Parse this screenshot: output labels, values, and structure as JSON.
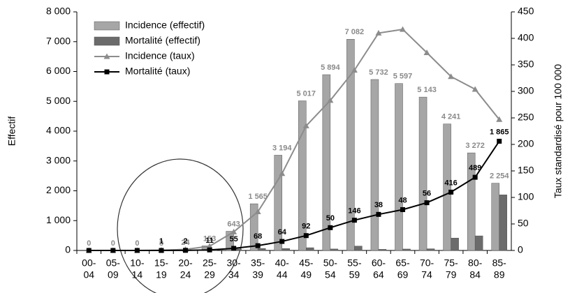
{
  "chart_data": {
    "type": "bar-line",
    "y_label": "Effectif",
    "y2_label": "Taux standardisé pour 100 000",
    "categories": [
      [
        "00-",
        "04"
      ],
      [
        "05-",
        "09"
      ],
      [
        "10-",
        "14"
      ],
      [
        "15-",
        "19"
      ],
      [
        "20-",
        "24"
      ],
      [
        "25-",
        "29"
      ],
      [
        "30-",
        "34"
      ],
      [
        "35-",
        "39"
      ],
      [
        "40-",
        "44"
      ],
      [
        "45-",
        "49"
      ],
      [
        "50-",
        "54"
      ],
      [
        "55-",
        "59"
      ],
      [
        "60-",
        "64"
      ],
      [
        "65-",
        "69"
      ],
      [
        "70-",
        "74"
      ],
      [
        "75-",
        "79"
      ],
      [
        "80-",
        "84"
      ],
      [
        "85-",
        "89"
      ]
    ],
    "series": [
      {
        "name": "Incidence (effectif)",
        "kind": "bar",
        "color": "#a6a6a6",
        "label_color": "#8a8a8a",
        "values": [
          0,
          0,
          0,
          3,
          24,
          153,
          643,
          1565,
          3194,
          5017,
          5894,
          7082,
          5732,
          5597,
          5143,
          4241,
          3272,
          2254
        ],
        "value_labels": [
          "0",
          "0",
          "0",
          "3",
          "24",
          "153",
          "643",
          "1 565",
          "3 194",
          "5 017",
          "5 894",
          "7 082",
          "5 732",
          "5 597",
          "5 143",
          "4 241",
          "3 272",
          "2 254"
        ]
      },
      {
        "name": "Mortalité (effectif)",
        "kind": "bar",
        "color": "#6b6b6b",
        "label_color": "#000000",
        "values": [
          0,
          0,
          0,
          1,
          2,
          11,
          55,
          68,
          64,
          92,
          50,
          146,
          38,
          48,
          56,
          416,
          489,
          1865
        ],
        "value_labels": [
          null,
          null,
          null,
          "1",
          "2",
          "11",
          "55",
          "68",
          "64",
          "92",
          "50",
          "146",
          "38",
          "48",
          "56",
          "416",
          "489",
          "1 865"
        ]
      },
      {
        "name": "Incidence (taux)",
        "kind": "line",
        "axis": "y2",
        "marker": "triangle",
        "color": "#8c8c8c",
        "values": [
          0,
          0,
          0,
          0.5,
          2,
          8,
          35,
          73,
          145,
          235,
          283,
          340,
          410,
          417,
          373,
          328,
          304,
          247
        ]
      },
      {
        "name": "Mortalité (taux)",
        "kind": "line",
        "axis": "y2",
        "marker": "square",
        "color": "#000000",
        "values": [
          0,
          0,
          0,
          0,
          0.2,
          1,
          4,
          9,
          17,
          28,
          43,
          57,
          68,
          77,
          90,
          110,
          138,
          206
        ]
      }
    ],
    "ylim": [
      0,
      8000
    ],
    "yticks": [
      0,
      {
        "value": 1000,
        "label": "1 000"
      },
      {
        "value": 2000,
        "label": "2 000"
      },
      {
        "value": 3000,
        "label": "3 000"
      },
      {
        "value": 4000,
        "label": "4 000"
      },
      {
        "value": 5000,
        "label": "5 000"
      },
      {
        "value": 6000,
        "label": "6 000"
      },
      {
        "value": 7000,
        "label": "7 000"
      },
      {
        "value": 8000,
        "label": "8 000"
      }
    ],
    "y2lim": [
      0,
      450
    ],
    "y2ticks": [
      0,
      50,
      100,
      150,
      200,
      250,
      300,
      350,
      400,
      450
    ],
    "legend": "upper-left"
  }
}
